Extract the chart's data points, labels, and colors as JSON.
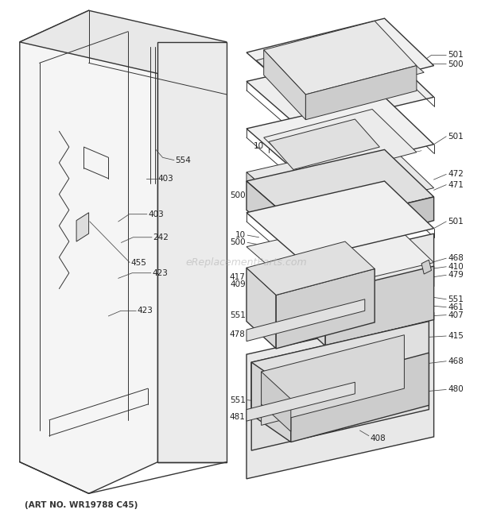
{
  "background_color": "#ffffff",
  "art_no_text": "(ART NO. WR19788 C45)",
  "line_color": "#333333",
  "text_color": "#222222",
  "leader_color": "#444444"
}
